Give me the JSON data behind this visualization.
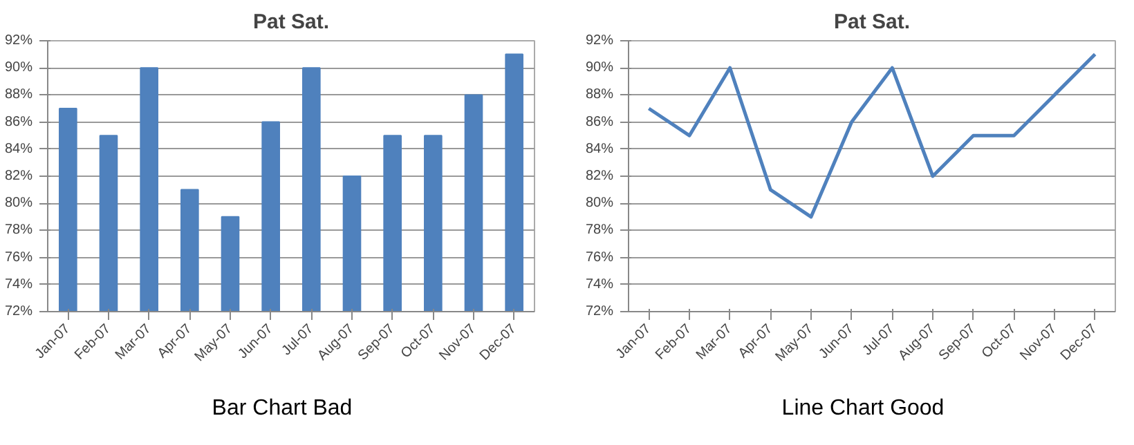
{
  "chart_data": [
    {
      "type": "bar",
      "title": "Pat Sat.",
      "categories": [
        "Jan-07",
        "Feb-07",
        "Mar-07",
        "Apr-07",
        "May-07",
        "Jun-07",
        "Jul-07",
        "Aug-07",
        "Sep-07",
        "Oct-07",
        "Nov-07",
        "Dec-07"
      ],
      "values": [
        87,
        85,
        90,
        81,
        79,
        86,
        90,
        82,
        85,
        85,
        88,
        91
      ],
      "color": "#4f81bd",
      "ylim": [
        72,
        92
      ],
      "yticks": [
        {
          "value": 72,
          "label": "72%"
        },
        {
          "value": 74,
          "label": "74%"
        },
        {
          "value": 76,
          "label": "76%"
        },
        {
          "value": 78,
          "label": "78%"
        },
        {
          "value": 80,
          "label": "80%"
        },
        {
          "value": 82,
          "label": "82%"
        },
        {
          "value": 84,
          "label": "84%"
        },
        {
          "value": 86,
          "label": "86%"
        },
        {
          "value": 88,
          "label": "88%"
        },
        {
          "value": 90,
          "label": "90%"
        },
        {
          "value": 92,
          "label": "92%"
        }
      ],
      "grid": "y",
      "annotations": [
        "Bar Chart Bad"
      ]
    },
    {
      "type": "line",
      "title": "Pat Sat.",
      "categories": [
        "Jan-07",
        "Feb-07",
        "Mar-07",
        "Apr-07",
        "May-07",
        "Jun-07",
        "Jul-07",
        "Aug-07",
        "Sep-07",
        "Oct-07",
        "Nov-07",
        "Dec-07"
      ],
      "values": [
        87,
        85,
        90,
        81,
        79,
        86,
        90,
        82,
        85,
        85,
        88,
        91
      ],
      "color": "#4f81bd",
      "ylim": [
        72,
        92
      ],
      "yticks": [
        {
          "value": 72,
          "label": "72%"
        },
        {
          "value": 74,
          "label": "74%"
        },
        {
          "value": 76,
          "label": "76%"
        },
        {
          "value": 78,
          "label": "78%"
        },
        {
          "value": 80,
          "label": "80%"
        },
        {
          "value": 82,
          "label": "82%"
        },
        {
          "value": 84,
          "label": "84%"
        },
        {
          "value": 86,
          "label": "86%"
        },
        {
          "value": 88,
          "label": "88%"
        },
        {
          "value": 90,
          "label": "90%"
        },
        {
          "value": 92,
          "label": "92%"
        }
      ],
      "grid": "y",
      "annotations": [
        "Line Chart Good"
      ]
    }
  ]
}
